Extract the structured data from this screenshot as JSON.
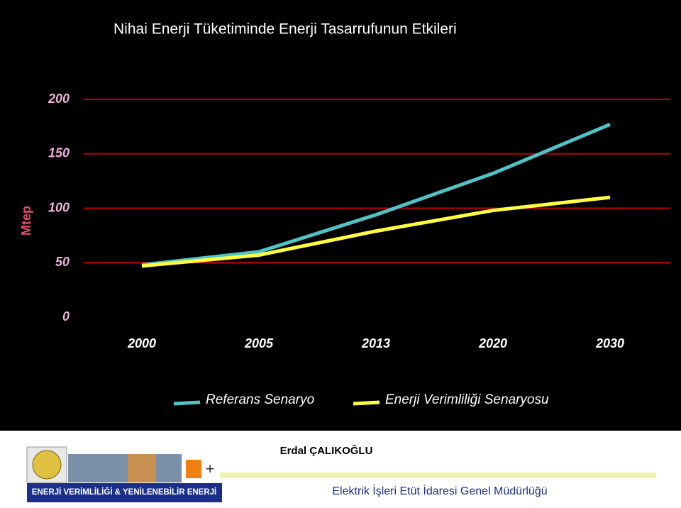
{
  "chart_data": {
    "type": "line",
    "title": "Nihai Enerji Tüketiminde Enerji Tasarrufunun Etkileri",
    "y_label": "Mtep",
    "categories": [
      "2000",
      "2005",
      "2013",
      "2020",
      "2030"
    ],
    "series": [
      {
        "name": "Referans Senaryo",
        "color": "#4fc3c7",
        "values": [
          48,
          60,
          94,
          132,
          177
        ]
      },
      {
        "name": "Enerji Verimliliği Senaryosu",
        "color": "#ffff40",
        "values": [
          47,
          57,
          79,
          98,
          110
        ]
      }
    ],
    "ylim": [
      0,
      200
    ],
    "yticks": [
      0,
      50,
      100,
      150,
      200
    ],
    "grid": true,
    "legend": "bottom"
  },
  "footer": {
    "author": "Erdal ÇALIKOĞLU",
    "banner": "ENERJİ VERİMLİLİĞİ & YENİLENEBİLİR ENERJİ",
    "institution": "Elektrik İşleri Etüt İdaresi Genel Müdürlüğü"
  }
}
